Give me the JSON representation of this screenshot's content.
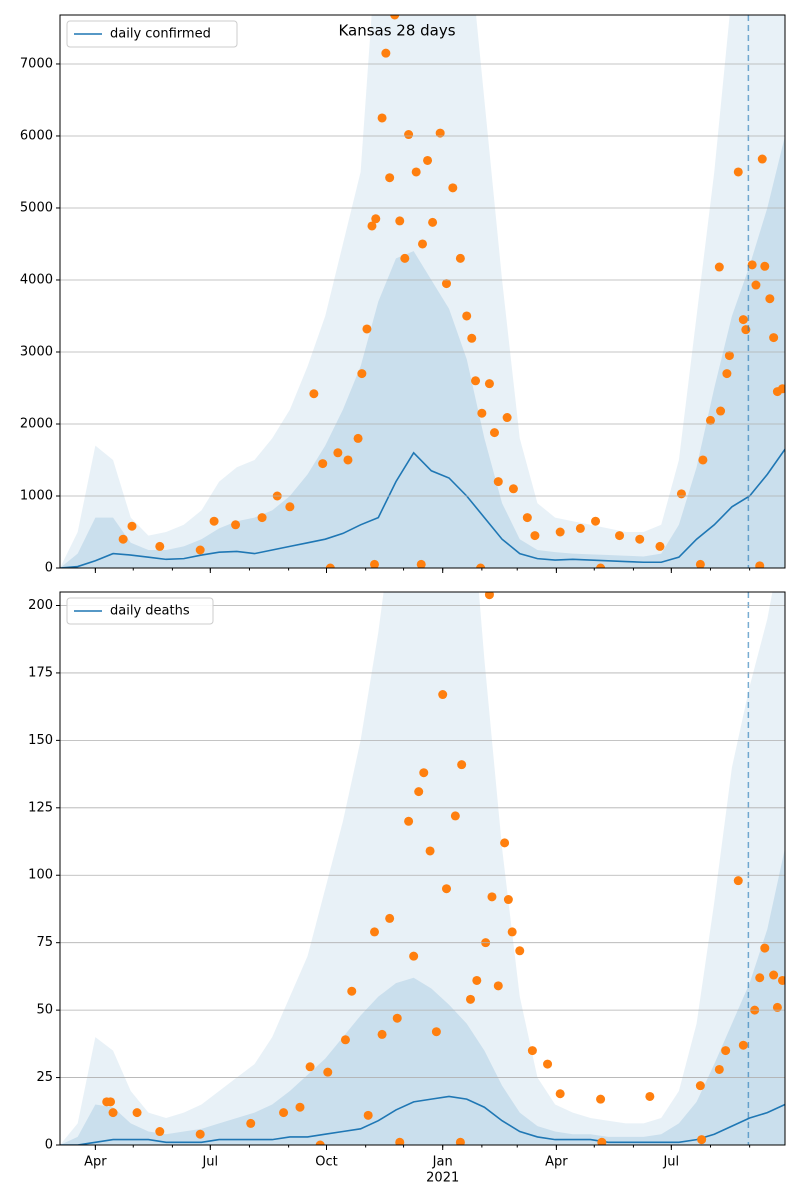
{
  "chart_data": [
    {
      "type": "line",
      "title": "Kansas 28 days",
      "x": [
        "2020-03-04",
        "2020-03-18",
        "2020-04-01",
        "2020-04-15",
        "2020-04-29",
        "2020-05-13",
        "2020-05-27",
        "2020-06-10",
        "2020-06-24",
        "2020-07-08",
        "2020-07-22",
        "2020-08-05",
        "2020-08-19",
        "2020-09-02",
        "2020-09-16",
        "2020-09-30",
        "2020-10-14",
        "2020-10-28",
        "2020-11-11",
        "2020-11-25",
        "2020-12-09",
        "2020-12-23",
        "2021-01-06",
        "2021-01-20",
        "2021-02-03",
        "2021-02-17",
        "2021-03-03",
        "2021-03-17",
        "2021-03-31",
        "2021-04-14",
        "2021-04-28",
        "2021-05-12",
        "2021-05-26",
        "2021-06-09",
        "2021-06-23",
        "2021-07-07",
        "2021-07-21",
        "2021-08-04",
        "2021-08-18",
        "2021-09-01",
        "2021-09-15",
        "2021-09-29"
      ],
      "series": [
        {
          "name": "daily confirmed",
          "color": "#1f77b4",
          "values": [
            0,
            20,
            100,
            200,
            180,
            150,
            120,
            130,
            180,
            220,
            230,
            200,
            250,
            300,
            350,
            400,
            480,
            600,
            700,
            1200,
            1600,
            1350,
            1250,
            1000,
            700,
            400,
            200,
            130,
            110,
            120,
            110,
            100,
            90,
            80,
            80,
            150,
            400,
            600,
            850,
            1000,
            1300,
            1650
          ]
        }
      ],
      "bands": [
        {
          "color": "#1f77b4",
          "opacity": 0.1,
          "upper": [
            0,
            500,
            1700,
            1500,
            700,
            450,
            500,
            600,
            800,
            1200,
            1400,
            1500,
            1800,
            2200,
            2800,
            3500,
            4500,
            5500,
            9000,
            12000,
            13000,
            12000,
            10000,
            9000,
            6500,
            4000,
            1800,
            900,
            700,
            650,
            600,
            550,
            500,
            500,
            600,
            1500,
            3500,
            5500,
            8000,
            10000,
            11000,
            12000
          ]
        },
        {
          "color": "#1f77b4",
          "opacity": 0.15,
          "upper": [
            0,
            200,
            700,
            700,
            350,
            250,
            250,
            300,
            400,
            550,
            650,
            700,
            800,
            1000,
            1300,
            1700,
            2200,
            2800,
            3700,
            4300,
            4400,
            4000,
            3600,
            2900,
            1800,
            900,
            400,
            250,
            220,
            200,
            190,
            180,
            170,
            160,
            200,
            600,
            1400,
            2500,
            3500,
            4200,
            5000,
            6000
          ]
        }
      ],
      "scatter": {
        "color": "#ff7f0e",
        "x": [
          "2020-04-23",
          "2020-04-30",
          "2020-05-22",
          "2020-06-23",
          "2020-07-04",
          "2020-07-21",
          "2020-08-11",
          "2020-08-23",
          "2020-09-02",
          "2020-09-21",
          "2020-09-28",
          "2020-10-04",
          "2020-10-10",
          "2020-10-18",
          "2020-10-26",
          "2020-10-29",
          "2020-11-02",
          "2020-11-06",
          "2020-11-08",
          "2020-11-09",
          "2020-11-14",
          "2020-11-17",
          "2020-11-20",
          "2020-11-24",
          "2020-11-28",
          "2020-12-02",
          "2020-12-05",
          "2020-12-11",
          "2020-12-15",
          "2020-12-16",
          "2020-12-20",
          "2020-12-24",
          "2020-12-30",
          "2021-01-04",
          "2021-01-09",
          "2021-01-15",
          "2021-01-20",
          "2021-01-24",
          "2021-01-27",
          "2021-01-31",
          "2021-02-01",
          "2021-02-07",
          "2021-02-11",
          "2021-02-14",
          "2021-02-21",
          "2021-02-26",
          "2021-03-09",
          "2021-03-15",
          "2021-04-04",
          "2021-04-20",
          "2021-05-02",
          "2021-05-06",
          "2021-05-21",
          "2021-06-06",
          "2021-06-22",
          "2021-07-09",
          "2021-07-24",
          "2021-07-26",
          "2021-08-01",
          "2021-08-08",
          "2021-08-09",
          "2021-08-14",
          "2021-08-16",
          "2021-08-23",
          "2021-08-27",
          "2021-08-29",
          "2021-09-03",
          "2021-09-06",
          "2021-09-09",
          "2021-09-11",
          "2021-09-13",
          "2021-09-17",
          "2021-09-20",
          "2021-09-23",
          "2021-09-27"
        ],
        "values": [
          400,
          580,
          300,
          250,
          650,
          600,
          700,
          1000,
          850,
          2420,
          1450,
          0,
          1600,
          1500,
          1800,
          2700,
          3320,
          4750,
          50,
          4850,
          6250,
          7150,
          5420,
          7680,
          4820,
          4300,
          6020,
          5500,
          50,
          4500,
          5660,
          4800,
          6040,
          3950,
          5280,
          4300,
          3500,
          3190,
          2600,
          0,
          2150,
          2560,
          1880,
          1200,
          2090,
          1100,
          700,
          450,
          500,
          550,
          650,
          0,
          450,
          400,
          300,
          1030,
          50,
          1500,
          2050,
          4180,
          2180,
          2700,
          2950,
          5500,
          3450,
          3310,
          4210,
          3930,
          30,
          5680,
          4190,
          3740,
          3200,
          2450,
          2490
        ]
      },
      "vline": {
        "x": "2021-08-31",
        "color": "#1f77b4"
      },
      "xlim": [
        "2020-03-04",
        "2021-09-29"
      ],
      "xticks": [
        {
          "value": "2020-04-01",
          "label": "Apr"
        },
        {
          "value": "2020-07-01",
          "label": "Jul"
        },
        {
          "value": "2020-10-01",
          "label": "Oct"
        },
        {
          "value": "2021-01-01",
          "label": "Jan",
          "year": "2021"
        },
        {
          "value": "2021-04-01",
          "label": "Apr"
        },
        {
          "value": "2021-07-01",
          "label": "Jul"
        }
      ],
      "xtick_labels": false,
      "ylim": [
        0,
        7680
      ],
      "yticks": [
        0,
        1000,
        2000,
        3000,
        4000,
        5000,
        6000,
        7000
      ],
      "grid": true,
      "legend": "upper left"
    },
    {
      "type": "line",
      "x": [
        "2020-03-04",
        "2020-03-18",
        "2020-04-01",
        "2020-04-15",
        "2020-04-29",
        "2020-05-13",
        "2020-05-27",
        "2020-06-10",
        "2020-06-24",
        "2020-07-08",
        "2020-07-22",
        "2020-08-05",
        "2020-08-19",
        "2020-09-02",
        "2020-09-16",
        "2020-09-30",
        "2020-10-14",
        "2020-10-28",
        "2020-11-11",
        "2020-11-25",
        "2020-12-09",
        "2020-12-23",
        "2021-01-06",
        "2021-01-20",
        "2021-02-03",
        "2021-02-17",
        "2021-03-03",
        "2021-03-17",
        "2021-03-31",
        "2021-04-14",
        "2021-04-28",
        "2021-05-12",
        "2021-05-26",
        "2021-06-09",
        "2021-06-23",
        "2021-07-07",
        "2021-07-21",
        "2021-08-04",
        "2021-08-18",
        "2021-09-01",
        "2021-09-15",
        "2021-09-29"
      ],
      "series": [
        {
          "name": "daily deaths",
          "color": "#1f77b4",
          "values": [
            0,
            0,
            1,
            2,
            2,
            2,
            1,
            1,
            1,
            2,
            2,
            2,
            2,
            3,
            3,
            4,
            5,
            6,
            9,
            13,
            16,
            17,
            18,
            17,
            14,
            9,
            5,
            3,
            2,
            2,
            2,
            1,
            1,
            1,
            1,
            1,
            2,
            4,
            7,
            10,
            12,
            15
          ]
        }
      ],
      "bands": [
        {
          "color": "#1f77b4",
          "opacity": 0.1,
          "upper": [
            0,
            8,
            40,
            35,
            20,
            12,
            10,
            12,
            15,
            20,
            25,
            30,
            40,
            55,
            70,
            95,
            120,
            150,
            190,
            240,
            280,
            300,
            290,
            260,
            180,
            110,
            55,
            25,
            15,
            12,
            10,
            9,
            8,
            8,
            10,
            20,
            45,
            90,
            140,
            170,
            195,
            230
          ]
        },
        {
          "color": "#1f77b4",
          "opacity": 0.15,
          "upper": [
            0,
            3,
            15,
            14,
            8,
            5,
            4,
            5,
            6,
            8,
            10,
            12,
            15,
            20,
            26,
            32,
            40,
            48,
            55,
            60,
            62,
            58,
            52,
            45,
            35,
            22,
            12,
            7,
            5,
            4,
            4,
            3,
            3,
            3,
            4,
            8,
            16,
            30,
            45,
            60,
            80,
            110
          ]
        }
      ],
      "scatter": {
        "color": "#ff7f0e",
        "x": [
          "2020-04-10",
          "2020-04-13",
          "2020-04-15",
          "2020-05-04",
          "2020-05-22",
          "2020-06-23",
          "2020-08-02",
          "2020-08-28",
          "2020-09-10",
          "2020-09-18",
          "2020-09-26",
          "2020-10-02",
          "2020-10-16",
          "2020-10-21",
          "2020-11-03",
          "2020-11-08",
          "2020-11-14",
          "2020-11-20",
          "2020-11-26",
          "2020-11-28",
          "2020-12-05",
          "2020-12-09",
          "2020-12-13",
          "2020-12-17",
          "2020-12-22",
          "2020-12-27",
          "2021-01-01",
          "2021-01-04",
          "2021-01-11",
          "2021-01-15",
          "2021-01-16",
          "2021-01-23",
          "2021-01-28",
          "2021-02-04",
          "2021-02-07",
          "2021-02-09",
          "2021-02-14",
          "2021-02-19",
          "2021-02-22",
          "2021-02-25",
          "2021-03-03",
          "2021-03-13",
          "2021-03-25",
          "2021-04-04",
          "2021-05-06",
          "2021-05-07",
          "2021-06-14",
          "2021-07-24",
          "2021-07-25",
          "2021-08-08",
          "2021-08-13",
          "2021-08-23",
          "2021-08-27",
          "2021-09-05",
          "2021-09-09",
          "2021-09-13",
          "2021-09-20",
          "2021-09-23",
          "2021-09-27"
        ],
        "values": [
          16,
          16,
          12,
          12,
          5,
          4,
          8,
          12,
          14,
          29,
          0,
          27,
          39,
          57,
          11,
          79,
          41,
          84,
          47,
          1,
          120,
          70,
          131,
          138,
          109,
          42,
          167,
          95,
          122,
          1,
          141,
          54,
          61,
          75,
          204,
          92,
          59,
          112,
          91,
          79,
          72,
          35,
          30,
          19,
          17,
          1,
          18,
          22,
          2,
          28,
          35,
          98,
          37,
          50,
          62,
          73,
          63,
          51,
          61
        ]
      },
      "vline": {
        "x": "2021-08-31",
        "color": "#1f77b4"
      },
      "xlim": [
        "2020-03-04",
        "2021-09-29"
      ],
      "xticks": [
        {
          "value": "2020-04-01",
          "label": "Apr"
        },
        {
          "value": "2020-07-01",
          "label": "Jul"
        },
        {
          "value": "2020-10-01",
          "label": "Oct"
        },
        {
          "value": "2021-01-01",
          "label": "Jan",
          "year": "2021"
        },
        {
          "value": "2021-04-01",
          "label": "Apr"
        },
        {
          "value": "2021-07-01",
          "label": "Jul"
        }
      ],
      "xtick_labels": true,
      "ylim": [
        0,
        205
      ],
      "yticks": [
        0,
        25,
        50,
        75,
        100,
        125,
        150,
        175,
        200
      ],
      "grid": true,
      "legend": "upper left"
    }
  ]
}
